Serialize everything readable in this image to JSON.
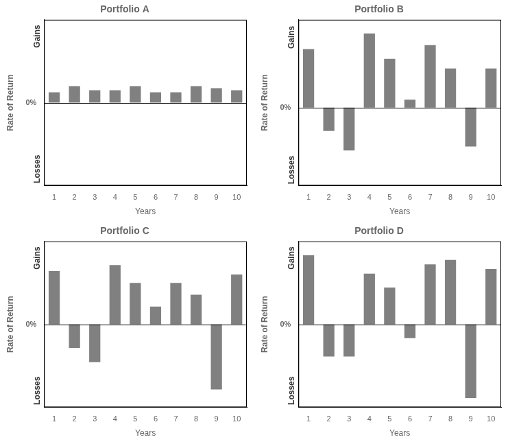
{
  "chart_data": [
    {
      "type": "bar",
      "title": "Portfolio A",
      "categories": [
        "1",
        "2",
        "3",
        "4",
        "5",
        "6",
        "7",
        "8",
        "9",
        "10"
      ],
      "values": [
        0.5,
        0.8,
        0.6,
        0.6,
        0.8,
        0.5,
        0.5,
        0.8,
        0.7,
        0.6
      ],
      "color": "#808080",
      "xlabel": "Years",
      "ylabel": "Rate of Return",
      "ylim": [
        -4.0,
        4.0
      ],
      "yticks": [
        {
          "value": 0,
          "label": "0%"
        }
      ],
      "annotations": [
        "Gains",
        "Losses"
      ],
      "grid": false
    },
    {
      "type": "bar",
      "title": "Portfolio B",
      "categories": [
        "1",
        "2",
        "3",
        "4",
        "5",
        "6",
        "7",
        "8",
        "9",
        "10"
      ],
      "values": [
        3.0,
        -1.2,
        -2.2,
        3.8,
        2.5,
        0.4,
        3.2,
        2.0,
        -2.0,
        2.0
      ],
      "color": "#808080",
      "xlabel": "Years",
      "ylabel": "Rate of Return",
      "ylim": [
        -4.0,
        4.5
      ],
      "yticks": [
        {
          "value": 0,
          "label": "0%"
        }
      ],
      "annotations": [
        "Gains",
        "Losses"
      ],
      "grid": false
    },
    {
      "type": "bar",
      "title": "Portfolio C",
      "categories": [
        "1",
        "2",
        "3",
        "4",
        "5",
        "6",
        "7",
        "8",
        "9",
        "10"
      ],
      "values": [
        4.5,
        -2.0,
        -3.2,
        5.0,
        3.5,
        1.5,
        3.5,
        2.5,
        -5.5,
        4.2
      ],
      "color": "#808080",
      "xlabel": "Years",
      "ylabel": "Rate of Return",
      "ylim": [
        -7.0,
        7.0
      ],
      "yticks": [
        {
          "value": 0,
          "label": "0%"
        }
      ],
      "annotations": [
        "Gains",
        "Losses"
      ],
      "grid": false
    },
    {
      "type": "bar",
      "title": "Portfolio D",
      "categories": [
        "1",
        "2",
        "3",
        "4",
        "5",
        "6",
        "7",
        "8",
        "9",
        "10"
      ],
      "values": [
        7.5,
        -3.5,
        -3.5,
        5.5,
        4.0,
        -1.5,
        6.5,
        7.0,
        -8.0,
        6.0
      ],
      "color": "#808080",
      "xlabel": "Years",
      "ylabel": "Rate of Return",
      "ylim": [
        -9.0,
        9.0
      ],
      "yticks": [
        {
          "value": 0,
          "label": "0%"
        }
      ],
      "annotations": [
        "Gains",
        "Losses"
      ],
      "grid": false
    }
  ]
}
